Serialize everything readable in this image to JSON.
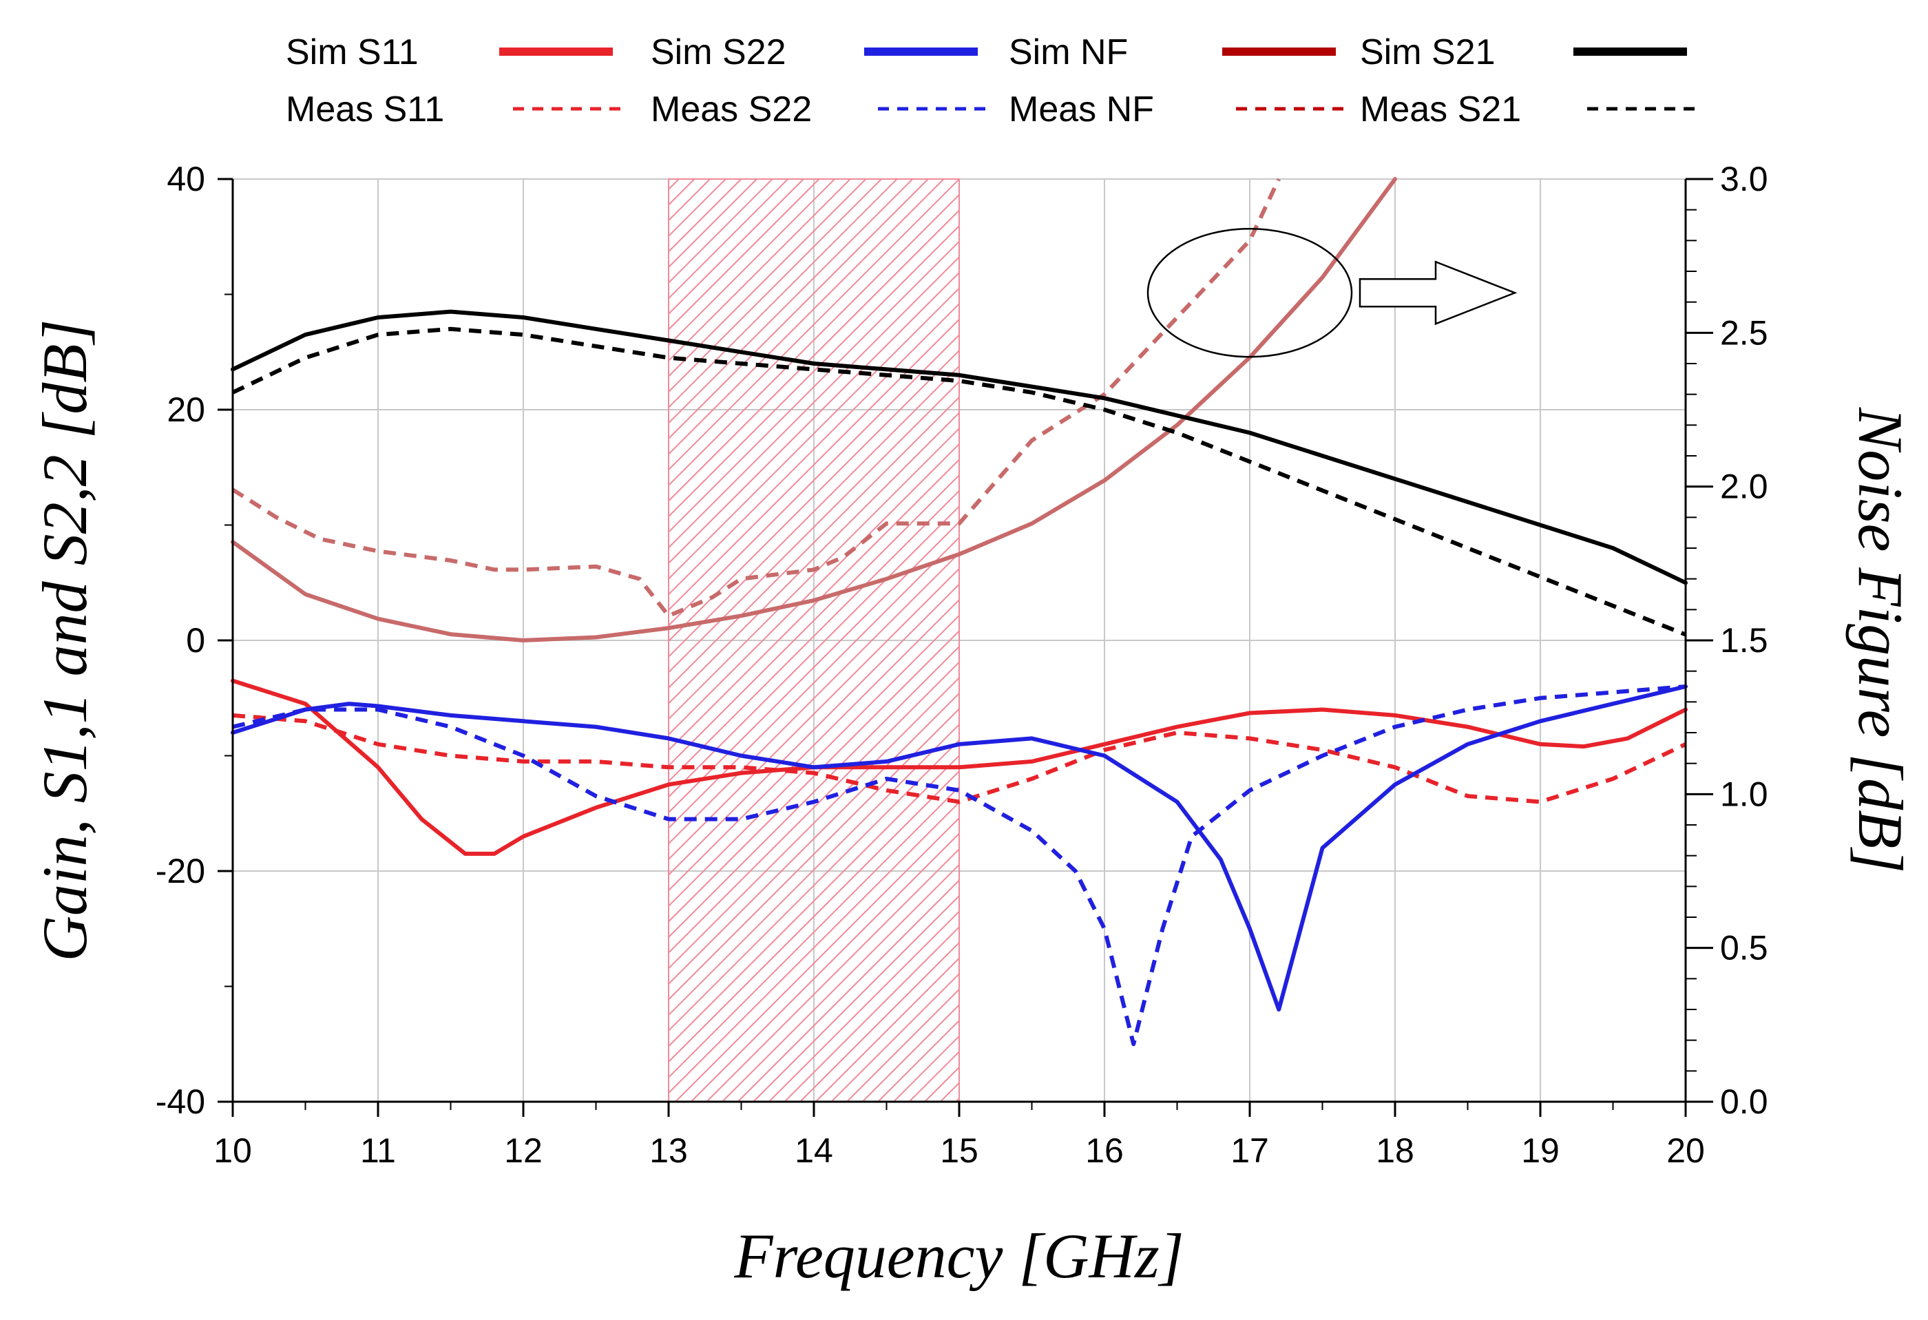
{
  "chart_data": {
    "type": "line",
    "title": "",
    "xlabel": "Frequency [GHz]",
    "ylabel_left": "Gain, S1,1  and S2,2 [dB]",
    "ylabel_right": "Noise Figure [dB]",
    "xlim": [
      10,
      20
    ],
    "ylim_left": [
      -40,
      40
    ],
    "ylim_right": [
      0.0,
      3.0
    ],
    "grid": true,
    "legend_position": "top",
    "x_ticks": [
      "10",
      "11",
      "12",
      "13",
      "14",
      "15",
      "16",
      "17",
      "18",
      "19",
      "20"
    ],
    "y_left_ticks": [
      "40",
      "20",
      "0",
      "-20",
      "-40"
    ],
    "y_right_ticks": [
      "3.0",
      "2.5",
      "2.0",
      "1.5",
      "1.0",
      "0.5",
      "0.0"
    ],
    "highlight_band": [
      13,
      15
    ],
    "annotation": "ellipse with arrow pointing to right axis (noise figure curves)",
    "series": [
      {
        "name": "Sim S11",
        "axis": "left",
        "color": "#e8232a",
        "style": "solid",
        "x": [
          10,
          10.5,
          11,
          11.3,
          11.6,
          11.8,
          12,
          12.5,
          13,
          13.5,
          14,
          14.5,
          15,
          15.5,
          16,
          16.5,
          17,
          17.5,
          18,
          18.5,
          19,
          19.3,
          19.6,
          20
        ],
        "y": [
          -3.5,
          -5.5,
          -11,
          -15.5,
          -18.5,
          -18.5,
          -17,
          -14.5,
          -12.5,
          -11.5,
          -11,
          -11,
          -11,
          -10.5,
          -9,
          -7.5,
          -6.3,
          -6,
          -6.5,
          -7.5,
          -9,
          -9.2,
          -8.5,
          -6
        ]
      },
      {
        "name": "Meas S11",
        "axis": "left",
        "color": "#e8232a",
        "style": "dashed",
        "x": [
          10,
          10.5,
          11,
          11.5,
          12,
          12.5,
          13,
          13.5,
          14,
          14.5,
          15,
          15.5,
          16,
          16.5,
          17,
          17.5,
          18,
          18.5,
          19,
          19.5,
          20
        ],
        "y": [
          -6.5,
          -7,
          -9,
          -10,
          -10.5,
          -10.5,
          -11,
          -11,
          -11.5,
          -13,
          -14,
          -12,
          -9.5,
          -8,
          -8.5,
          -9.5,
          -11,
          -13.5,
          -14,
          -12,
          -9
        ]
      },
      {
        "name": "Sim S22",
        "axis": "left",
        "color": "#2020e0",
        "style": "solid",
        "x": [
          10,
          10.5,
          10.8,
          11,
          11.5,
          12,
          12.5,
          13,
          13.5,
          14,
          14.5,
          15,
          15.5,
          16,
          16.5,
          16.8,
          17,
          17.2,
          17.5,
          18,
          18.5,
          19,
          19.5,
          20
        ],
        "y": [
          -8,
          -6,
          -5.5,
          -5.7,
          -6.5,
          -7,
          -7.5,
          -8.5,
          -10,
          -11,
          -10.5,
          -9,
          -8.5,
          -10,
          -14,
          -19,
          -25,
          -32,
          -18,
          -12.5,
          -9,
          -7,
          -5.5,
          -4
        ]
      },
      {
        "name": "Meas S22",
        "axis": "left",
        "color": "#2020e0",
        "style": "dashed",
        "x": [
          10,
          10.5,
          11,
          11.5,
          12,
          12.5,
          13,
          13.2,
          13.5,
          14,
          14.5,
          15,
          15.5,
          15.8,
          16,
          16.2,
          16.4,
          16.6,
          17,
          17.5,
          18,
          18.5,
          19,
          19.5,
          20
        ],
        "y": [
          -7.5,
          -6,
          -6,
          -7.5,
          -10,
          -13.5,
          -15.5,
          -15.5,
          -15.5,
          -14,
          -12,
          -13,
          -16.5,
          -20,
          -25,
          -35,
          -25,
          -17,
          -13,
          -10,
          -7.5,
          -6,
          -5,
          -4.5,
          -4
        ]
      },
      {
        "name": "Sim NF",
        "axis": "right",
        "color": "#c86a6a",
        "style": "solid",
        "x": [
          10,
          10.5,
          11,
          11.5,
          12,
          12.5,
          13,
          13.5,
          14,
          14.5,
          15,
          15.5,
          16,
          16.5,
          17,
          17.5,
          18
        ],
        "y": [
          1.82,
          1.65,
          1.57,
          1.52,
          1.5,
          1.51,
          1.54,
          1.58,
          1.63,
          1.7,
          1.78,
          1.88,
          2.02,
          2.2,
          2.42,
          2.68,
          3.0
        ]
      },
      {
        "name": "Meas NF",
        "axis": "right",
        "color": "#c86a6a",
        "style": "dashed",
        "x": [
          10,
          10.3,
          10.6,
          11,
          11.5,
          11.8,
          12,
          12.5,
          12.8,
          13,
          13.3,
          13.5,
          14,
          14.2,
          14.5,
          15,
          15.5,
          16,
          16.3,
          16.6,
          17,
          17.2
        ],
        "y": [
          1.99,
          1.9,
          1.83,
          1.79,
          1.76,
          1.73,
          1.73,
          1.74,
          1.7,
          1.58,
          1.64,
          1.7,
          1.73,
          1.77,
          1.88,
          1.88,
          2.15,
          2.3,
          2.45,
          2.6,
          2.8,
          3.0
        ]
      },
      {
        "name": "Sim S21",
        "axis": "left",
        "color": "#000000",
        "style": "solid",
        "x": [
          10,
          10.5,
          11,
          11.5,
          12,
          12.5,
          13,
          13.5,
          14,
          14.5,
          15,
          15.5,
          16,
          16.5,
          17,
          17.5,
          18,
          18.5,
          19,
          19.5,
          20
        ],
        "y": [
          23.5,
          26.5,
          28,
          28.5,
          28,
          27,
          26,
          25,
          24,
          23.5,
          23,
          22,
          21,
          19.5,
          18,
          16,
          14,
          12,
          10,
          8,
          5
        ]
      },
      {
        "name": "Meas S21",
        "axis": "left",
        "color": "#000000",
        "style": "dashed",
        "x": [
          10,
          10.5,
          11,
          11.5,
          12,
          12.5,
          13,
          13.5,
          14,
          14.5,
          15,
          15.5,
          16,
          16.5,
          17,
          17.5,
          18,
          18.5,
          19,
          19.5,
          20
        ],
        "y": [
          21.5,
          24.5,
          26.5,
          27,
          26.5,
          25.5,
          24.5,
          24,
          23.5,
          23,
          22.5,
          21.5,
          20,
          18,
          15.5,
          13,
          10.5,
          8,
          5.5,
          3,
          0.5
        ]
      }
    ]
  }
}
